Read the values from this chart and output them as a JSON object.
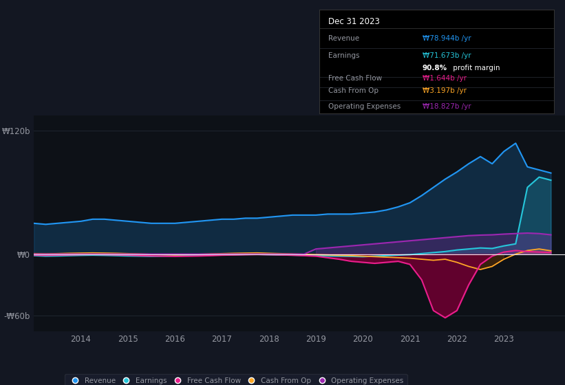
{
  "bg_color": "#131722",
  "plot_bg_color": "#0d1117",
  "grid_color": "#1e2630",
  "text_color": "#9598a1",
  "colors": {
    "revenue": "#2196f3",
    "earnings": "#26c6da",
    "free_cash_flow": "#e91e8c",
    "cash_from_op": "#ffa726",
    "operating_expenses": "#9c27b0"
  },
  "legend": [
    {
      "label": "Revenue",
      "color": "#2196f3"
    },
    {
      "label": "Earnings",
      "color": "#26c6da"
    },
    {
      "label": "Free Cash Flow",
      "color": "#e91e8c"
    },
    {
      "label": "Cash From Op",
      "color": "#ffa726"
    },
    {
      "label": "Operating Expenses",
      "color": "#9c27b0"
    }
  ],
  "info_box": {
    "title": "Dec 31 2023",
    "rows": [
      {
        "label": "Revenue",
        "value": "₩78.944b /yr",
        "value_color": "#2196f3"
      },
      {
        "label": "Earnings",
        "value": "₩71.673b /yr",
        "value_color": "#26c6da"
      },
      {
        "label": "",
        "value": "90.8% profit margin",
        "value_color": "#ffffff"
      },
      {
        "label": "Free Cash Flow",
        "value": "₩1.644b /yr",
        "value_color": "#e91e8c"
      },
      {
        "label": "Cash From Op",
        "value": "₩3.197b /yr",
        "value_color": "#ffa726"
      },
      {
        "label": "Operating Expenses",
        "value": "₩18.827b /yr",
        "value_color": "#9c27b0"
      }
    ]
  },
  "ylabel_top": "₩120b",
  "ylabel_zero": "₩0",
  "ylabel_bottom": "-₩60b",
  "ylim": [
    -75,
    135
  ],
  "xlim": [
    2013.0,
    2024.3
  ],
  "xtick_years": [
    2014,
    2015,
    2016,
    2017,
    2018,
    2019,
    2020,
    2021,
    2022,
    2023
  ],
  "years": [
    2013.0,
    2013.25,
    2013.5,
    2013.75,
    2014.0,
    2014.25,
    2014.5,
    2014.75,
    2015.0,
    2015.25,
    2015.5,
    2015.75,
    2016.0,
    2016.25,
    2016.5,
    2016.75,
    2017.0,
    2017.25,
    2017.5,
    2017.75,
    2018.0,
    2018.25,
    2018.5,
    2018.75,
    2019.0,
    2019.25,
    2019.5,
    2019.75,
    2020.0,
    2020.25,
    2020.5,
    2020.75,
    2021.0,
    2021.25,
    2021.5,
    2021.75,
    2022.0,
    2022.25,
    2022.5,
    2022.75,
    2023.0,
    2023.25,
    2023.5,
    2023.75,
    2024.0
  ],
  "revenue": [
    30,
    29,
    30,
    31,
    32,
    34,
    34,
    33,
    32,
    31,
    30,
    30,
    30,
    31,
    32,
    33,
    34,
    34,
    35,
    35,
    36,
    37,
    38,
    38,
    38,
    39,
    39,
    39,
    40,
    41,
    43,
    46,
    50,
    57,
    65,
    73,
    80,
    88,
    95,
    88,
    100,
    108,
    85,
    82,
    79
  ],
  "earnings": [
    -1.5,
    -2.0,
    -1.8,
    -1.5,
    -1.2,
    -1.0,
    -1.2,
    -1.5,
    -1.8,
    -2.0,
    -2.2,
    -2.0,
    -1.8,
    -1.5,
    -1.2,
    -1.0,
    -0.8,
    -0.5,
    -0.3,
    -0.2,
    -0.5,
    -0.8,
    -1.0,
    -1.2,
    -1.5,
    -1.8,
    -2.0,
    -2.2,
    -2.5,
    -2.0,
    -1.5,
    -1.0,
    -0.5,
    0.5,
    1.5,
    2.5,
    4.0,
    5.0,
    6.0,
    5.5,
    8.0,
    10.0,
    65.0,
    75.0,
    72.0
  ],
  "free_cash_flow": [
    -1.0,
    -1.2,
    -1.0,
    -0.8,
    -0.5,
    -0.3,
    -0.5,
    -0.8,
    -1.0,
    -1.5,
    -1.8,
    -2.0,
    -2.2,
    -2.0,
    -1.8,
    -1.5,
    -1.0,
    -0.8,
    -0.5,
    -0.3,
    -0.5,
    -0.8,
    -1.0,
    -1.5,
    -2.0,
    -3.5,
    -5.0,
    -7.0,
    -8.0,
    -9.0,
    -8.0,
    -7.0,
    -10.0,
    -25.0,
    -55.0,
    -62.0,
    -55.0,
    -30.0,
    -10.0,
    -2.0,
    2.0,
    3.5,
    2.5,
    2.0,
    1.6
  ],
  "cash_from_op": [
    0.5,
    0.3,
    0.5,
    0.8,
    1.0,
    1.2,
    1.0,
    0.8,
    0.5,
    0.2,
    -0.2,
    -0.5,
    -0.8,
    -0.5,
    -0.2,
    0.2,
    0.5,
    0.8,
    1.0,
    1.2,
    0.8,
    0.5,
    0.2,
    -0.2,
    -0.5,
    -0.8,
    -1.2,
    -1.5,
    -2.0,
    -2.5,
    -3.0,
    -3.5,
    -4.0,
    -5.0,
    -6.0,
    -5.0,
    -8.0,
    -12.0,
    -15.0,
    -12.0,
    -5.0,
    0.0,
    3.5,
    5.0,
    3.2
  ],
  "operating_expenses": [
    0.0,
    0.0,
    0.0,
    0.0,
    0.0,
    0.0,
    0.0,
    0.0,
    0.0,
    0.0,
    0.0,
    0.0,
    0.0,
    0.0,
    0.0,
    0.0,
    0.0,
    0.0,
    0.0,
    0.0,
    0.0,
    0.0,
    0.0,
    0.0,
    5.0,
    6.0,
    7.0,
    8.0,
    9.0,
    10.0,
    11.0,
    12.0,
    13.0,
    14.0,
    15.0,
    16.0,
    17.0,
    18.0,
    18.5,
    18.8,
    19.5,
    20.0,
    20.5,
    20.0,
    18.8
  ]
}
